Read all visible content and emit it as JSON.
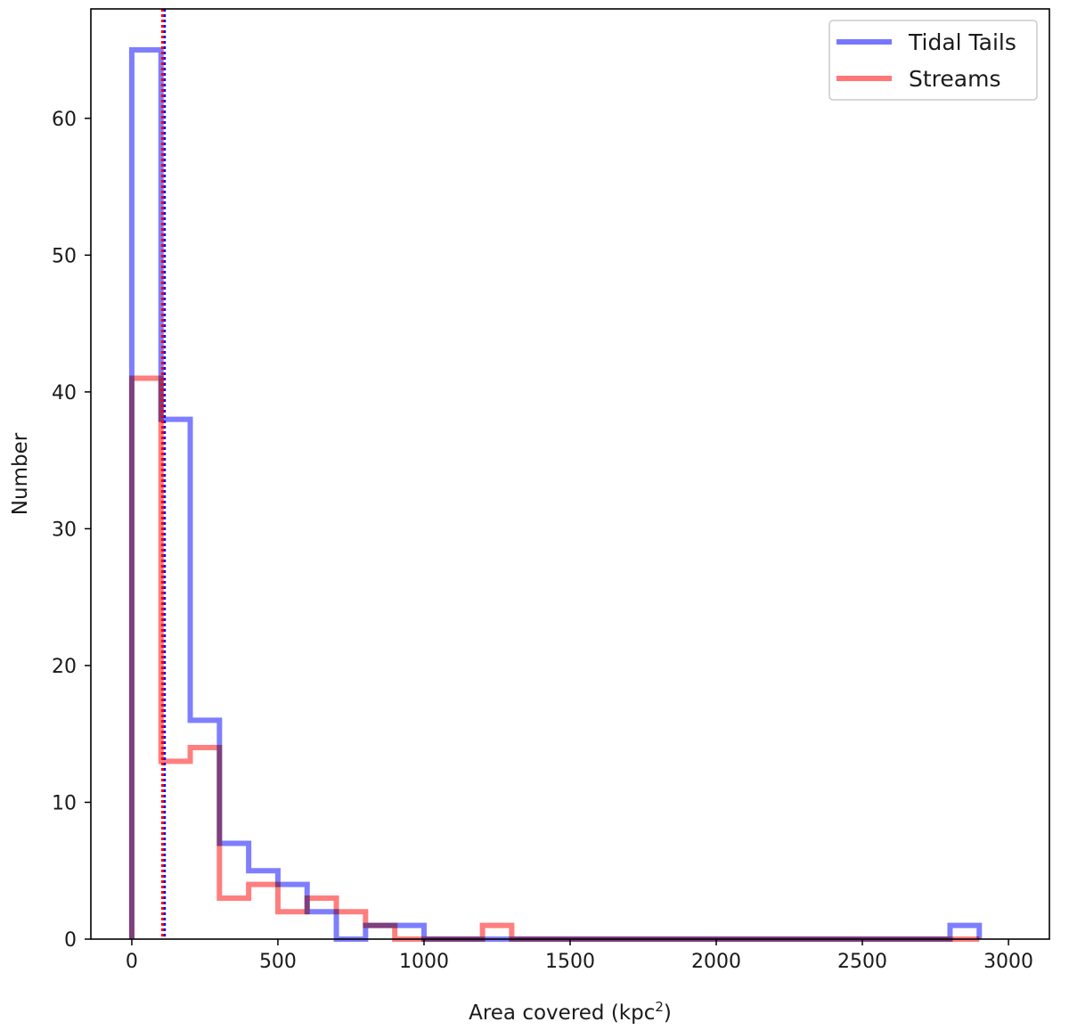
{
  "chart_data": {
    "type": "histogram",
    "title": "",
    "xlabel": "Area covered (kpc",
    "xlabel_superscript": "2",
    "xlabel_suffix": ")",
    "ylabel": "Number",
    "xlim": [
      -140,
      3140
    ],
    "ylim": [
      0,
      68
    ],
    "xticks": [
      0,
      500,
      1000,
      1500,
      2000,
      2500,
      3000
    ],
    "yticks": [
      0,
      10,
      20,
      30,
      40,
      50,
      60
    ],
    "bin_edges": [
      0,
      100,
      200,
      300,
      400,
      500,
      600,
      700,
      800,
      900,
      1000,
      1100,
      1200,
      1300,
      1400,
      1500,
      1600,
      1700,
      1800,
      1900,
      2000,
      2100,
      2200,
      2300,
      2400,
      2500,
      2600,
      2700,
      2800,
      2900
    ],
    "series": [
      {
        "name": "Tidal Tails",
        "color": "#7777ff",
        "values": [
          65,
          38,
          16,
          7,
          5,
          4,
          2,
          0,
          1,
          1,
          0,
          0,
          0,
          0,
          0,
          0,
          0,
          0,
          0,
          0,
          0,
          0,
          0,
          0,
          0,
          0,
          0,
          0,
          1
        ],
        "median": 112
      },
      {
        "name": "Streams",
        "color": "#ff7777",
        "values": [
          41,
          13,
          14,
          3,
          4,
          2,
          3,
          2,
          1,
          0,
          0,
          0,
          1,
          0,
          0,
          0,
          0,
          0,
          0,
          0,
          0,
          0,
          0,
          0,
          0,
          0,
          0,
          0,
          0
        ],
        "median": 105
      }
    ],
    "median_line_colors": [
      "#0000ff",
      "#ff0000"
    ],
    "legend_position": "top-right",
    "grid": false
  }
}
